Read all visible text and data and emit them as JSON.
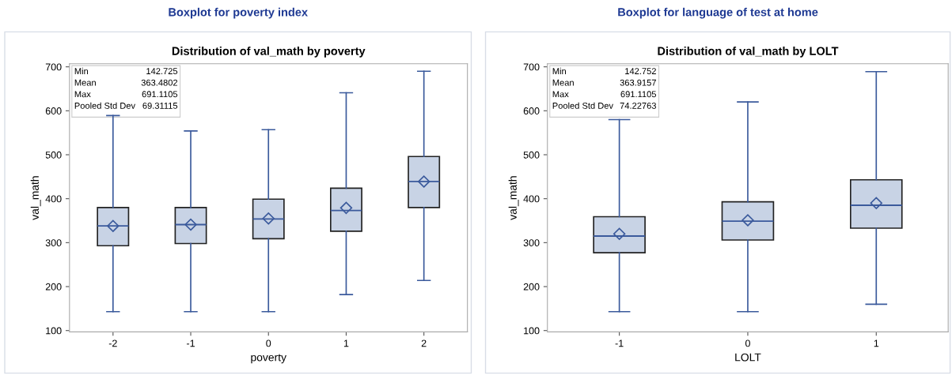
{
  "chart_data": [
    {
      "type": "box",
      "title": "Boxplot for poverty index",
      "subtitle": "Distribution of val_math by poverty",
      "xlabel": "poverty",
      "ylabel": "val_math",
      "categories": [
        "-2",
        "-1",
        "0",
        "1",
        "2"
      ],
      "ylim": [
        97,
        707
      ],
      "yticks": [
        100,
        200,
        300,
        400,
        500,
        600,
        700
      ],
      "grid": false,
      "marker": "diamond",
      "series": [
        {
          "color": "#c8d3e5",
          "boxes": [
            {
              "low": 143,
              "q1": 293,
              "median": 338,
              "q3": 380,
              "high": 589,
              "mean": 338
            },
            {
              "low": 143,
              "q1": 298,
              "median": 341,
              "q3": 380,
              "high": 554,
              "mean": 341
            },
            {
              "low": 143,
              "q1": 309,
              "median": 354,
              "q3": 399,
              "high": 557,
              "mean": 355
            },
            {
              "low": 182,
              "q1": 326,
              "median": 373,
              "q3": 424,
              "high": 641,
              "mean": 379
            },
            {
              "low": 214,
              "q1": 380,
              "median": 439,
              "q3": 496,
              "high": 690,
              "mean": 439
            }
          ]
        }
      ],
      "annotations": [
        "Min",
        "142.725",
        "Mean",
        "363.4802",
        "Max",
        "691.1105",
        "Pooled Std Dev",
        "69.31115"
      ]
    },
    {
      "type": "box",
      "title": "Boxplot for language of test at home",
      "subtitle": "Distribution of val_math by LOLT",
      "xlabel": "LOLT",
      "ylabel": "val_math",
      "categories": [
        "-1",
        "0",
        "1"
      ],
      "ylim": [
        97,
        707
      ],
      "yticks": [
        100,
        200,
        300,
        400,
        500,
        600,
        700
      ],
      "grid": false,
      "marker": "diamond",
      "series": [
        {
          "color": "#c8d3e5",
          "boxes": [
            {
              "low": 143,
              "q1": 277,
              "median": 315,
              "q3": 359,
              "high": 580,
              "mean": 320
            },
            {
              "low": 143,
              "q1": 306,
              "median": 349,
              "q3": 393,
              "high": 620,
              "mean": 351
            },
            {
              "low": 160,
              "q1": 333,
              "median": 385,
              "q3": 443,
              "high": 689,
              "mean": 390
            }
          ]
        }
      ],
      "annotations": [
        "Min",
        "142.752",
        "Mean",
        "363.9157",
        "Max",
        "691.1105",
        "Pooled Std Dev",
        "74.22763"
      ]
    }
  ]
}
